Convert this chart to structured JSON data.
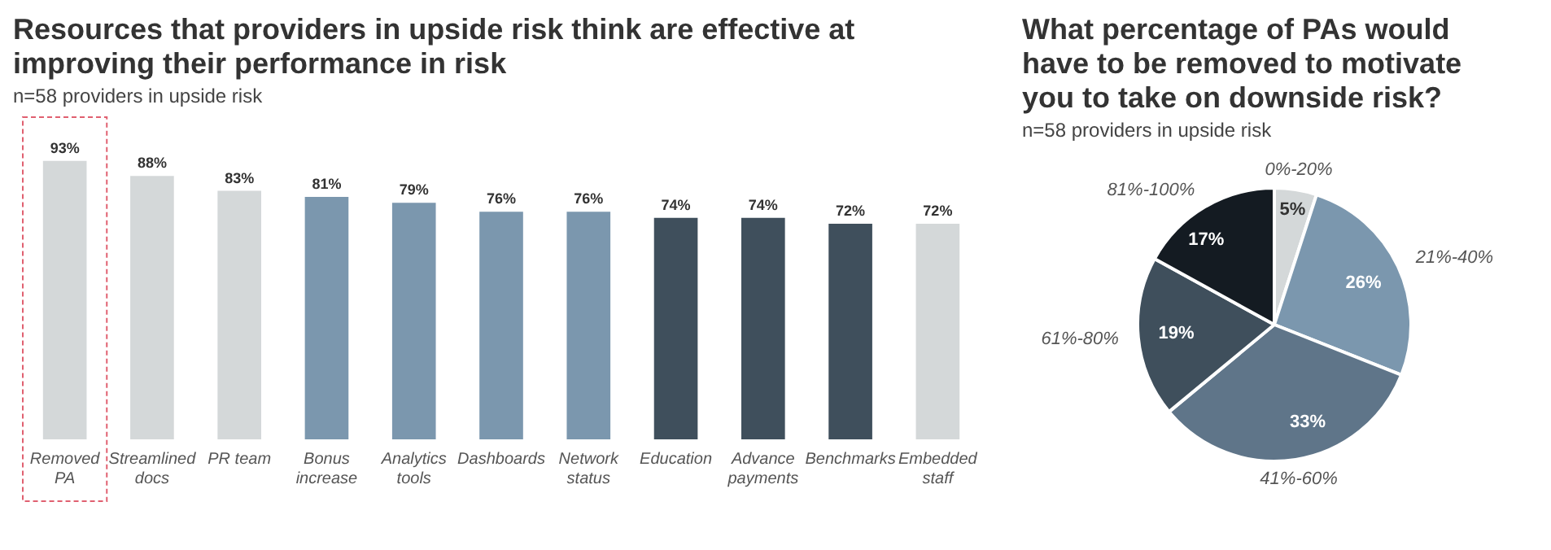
{
  "chart_data": [
    {
      "type": "bar",
      "title": "Resources that providers in upside risk think are effective at improving their performance in risk",
      "subtitle": "n=58 providers in upside risk",
      "categories": [
        "Removed PA",
        "Streamlined docs",
        "PR team",
        "Bonus increase",
        "Analytics tools",
        "Dashboards",
        "Network status",
        "Education",
        "Advance payments",
        "Benchmarks",
        "Embedded staff"
      ],
      "values": [
        93,
        88,
        83,
        81,
        79,
        76,
        76,
        74,
        74,
        72,
        72
      ],
      "value_labels": [
        "93%",
        "88%",
        "83%",
        "81%",
        "79%",
        "76%",
        "76%",
        "74%",
        "74%",
        "72%",
        "72%"
      ],
      "colors": [
        "#d4d8d9",
        "#d4d8d9",
        "#d4d8d9",
        "#7b97ae",
        "#7b97ae",
        "#7b97ae",
        "#7b97ae",
        "#3f4f5c",
        "#3f4f5c",
        "#3f4f5c",
        "#d4d8d9"
      ],
      "grid": false,
      "legend": false,
      "tick_labels": "x"
    },
    {
      "type": "pie",
      "title": "What percentage of PAs would have to be removed to motivate you to take on downside risk?",
      "subtitle": "n=58 providers in upside risk",
      "categories": [
        "0%-20%",
        "21%-40%",
        "41%-60%",
        "61%-80%",
        "81%-100%"
      ],
      "values": [
        5,
        26,
        33,
        19,
        17
      ],
      "value_labels": [
        "5%",
        "26%",
        "33%",
        "19%",
        "17%"
      ],
      "colors": [
        "#d4d8d9",
        "#7b97ae",
        "#5f7589",
        "#3f4f5c",
        "#141b22"
      ],
      "legend": false
    }
  ]
}
